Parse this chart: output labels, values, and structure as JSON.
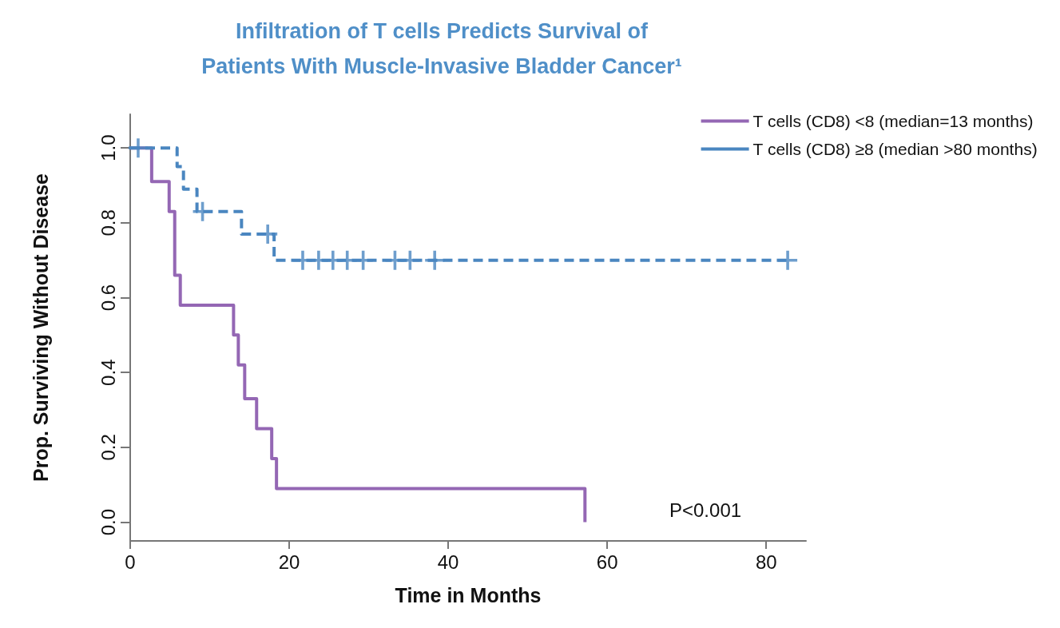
{
  "chart_data": {
    "type": "step",
    "title": "Infiltration of T cells Predicts Survival of\nPatients With Muscle-Invasive Bladder Cancer¹",
    "xlabel": "Time in Months",
    "ylabel": "Prop. Surviving Without Disease",
    "series": [
      {
        "name": "T cells (CD8) <8 (median=13 months)",
        "color": "#9467b4",
        "line_style": "solid",
        "x": [
          0,
          2.7,
          4.9,
          5.6,
          6.3,
          13.0,
          13.6,
          14.4,
          15.9,
          17.8,
          18.4,
          57.2
        ],
        "values": [
          1.0,
          0.91,
          0.83,
          0.66,
          0.58,
          0.5,
          0.42,
          0.33,
          0.25,
          0.17,
          0.09,
          0.0
        ]
      },
      {
        "name": "T cells (CD8) ≥8 (median >80 months)",
        "color": "#4a86c0",
        "line_style": "dashed",
        "x": [
          0,
          5.9,
          6.7,
          8.4,
          14.0,
          18.1,
          82.7
        ],
        "values": [
          1.0,
          0.95,
          0.89,
          0.83,
          0.77,
          0.7,
          0.7
        ]
      },
      {
        "type": "scatter",
        "marker": "cross",
        "color": "#4a86c0",
        "x": [
          1.0,
          9.1,
          17.3,
          21.7,
          23.7,
          25.5,
          27.3,
          29.3,
          33.3,
          35.2,
          38.3,
          82.7
        ],
        "values": [
          1.0,
          0.83,
          0.77,
          0.7,
          0.7,
          0.7,
          0.7,
          0.7,
          0.7,
          0.7,
          0.7,
          0.7
        ]
      }
    ],
    "xlim": [
      0,
      85
    ],
    "xticks": [
      0,
      20,
      40,
      60,
      80
    ],
    "ylim": [
      -0.05,
      1.09
    ],
    "yticks": [
      {
        "value": 0,
        "label": "0.0"
      },
      0.2,
      0.4,
      0.6,
      0.8,
      {
        "value": 1,
        "label": "1.0"
      }
    ],
    "grid": false,
    "legend": "top right",
    "annotations": [
      "P<0.001"
    ]
  }
}
